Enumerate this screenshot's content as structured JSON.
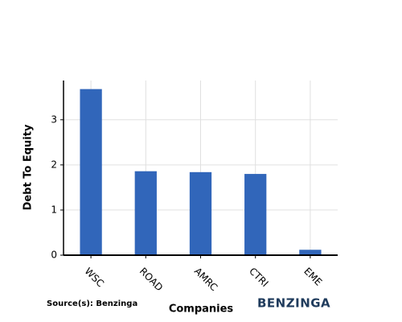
{
  "chart_data": {
    "type": "bar",
    "categories": [
      "WSC",
      "ROAD",
      "AMRC",
      "CTRI",
      "EME"
    ],
    "values": [
      3.68,
      1.86,
      1.84,
      1.8,
      0.12
    ],
    "color": "#3166ba",
    "xlabel": "Companies",
    "ylabel": "Debt To Equity",
    "ylim": [
      0,
      3.87
    ],
    "yticks": [
      0,
      1,
      2,
      3
    ],
    "grid": true,
    "source": "Source(s): Benzinga",
    "logo": "BENZINGA"
  }
}
